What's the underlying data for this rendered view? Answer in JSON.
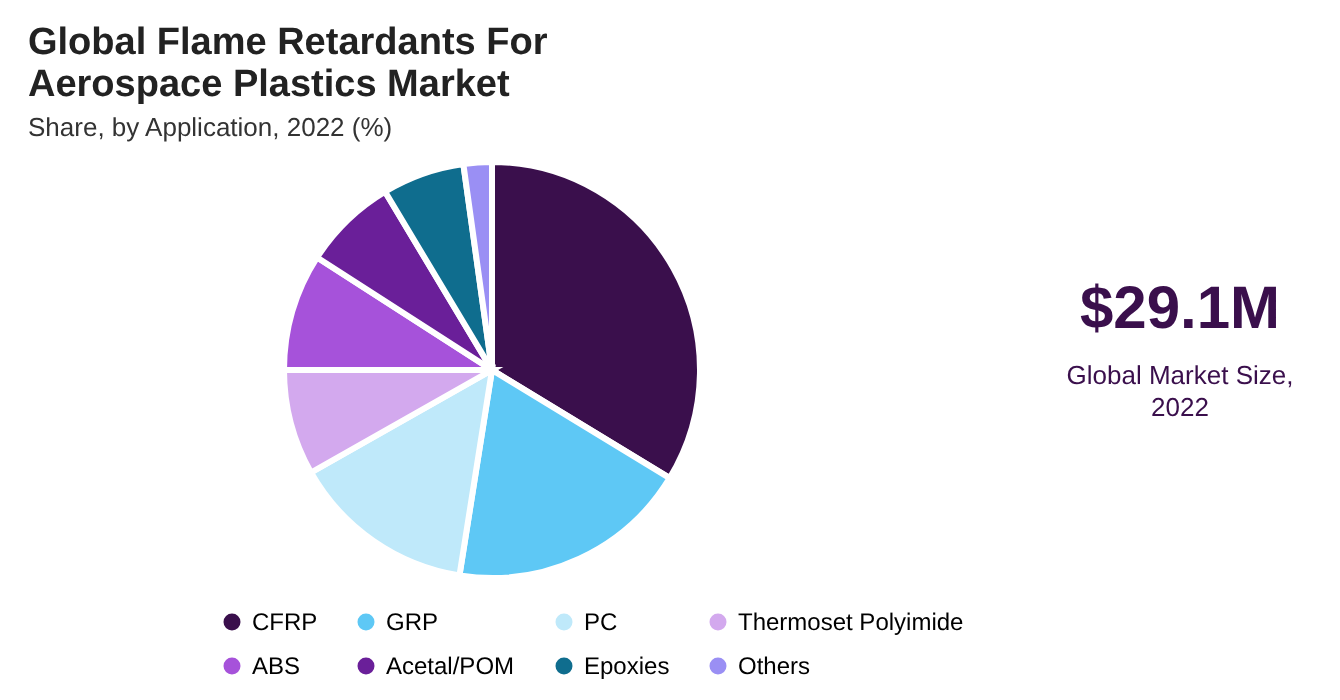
{
  "chart_data": {
    "type": "pie",
    "title": "Global Flame Retardants For Aerospace Plastics Market",
    "subtitle": "Share, by Application, 2022 (%)",
    "categories": [
      "CFRP",
      "GRP",
      "PC",
      "Thermoset Polyimide",
      "ABS",
      "Acetal/POM",
      "Epoxies",
      "Others"
    ],
    "values": [
      33.7,
      18.8,
      14.3,
      8.2,
      9.1,
      7.3,
      6.4,
      2.2
    ],
    "colors": [
      "#3a0f4c",
      "#5ec8f5",
      "#bfe9fa",
      "#d3a9ee",
      "#a652da",
      "#6a1f99",
      "#0f6d8e",
      "#9a8ff4"
    ],
    "legend": "bottom",
    "annotations": [
      "$29.1M",
      "Global Market Size, 2022"
    ]
  }
}
